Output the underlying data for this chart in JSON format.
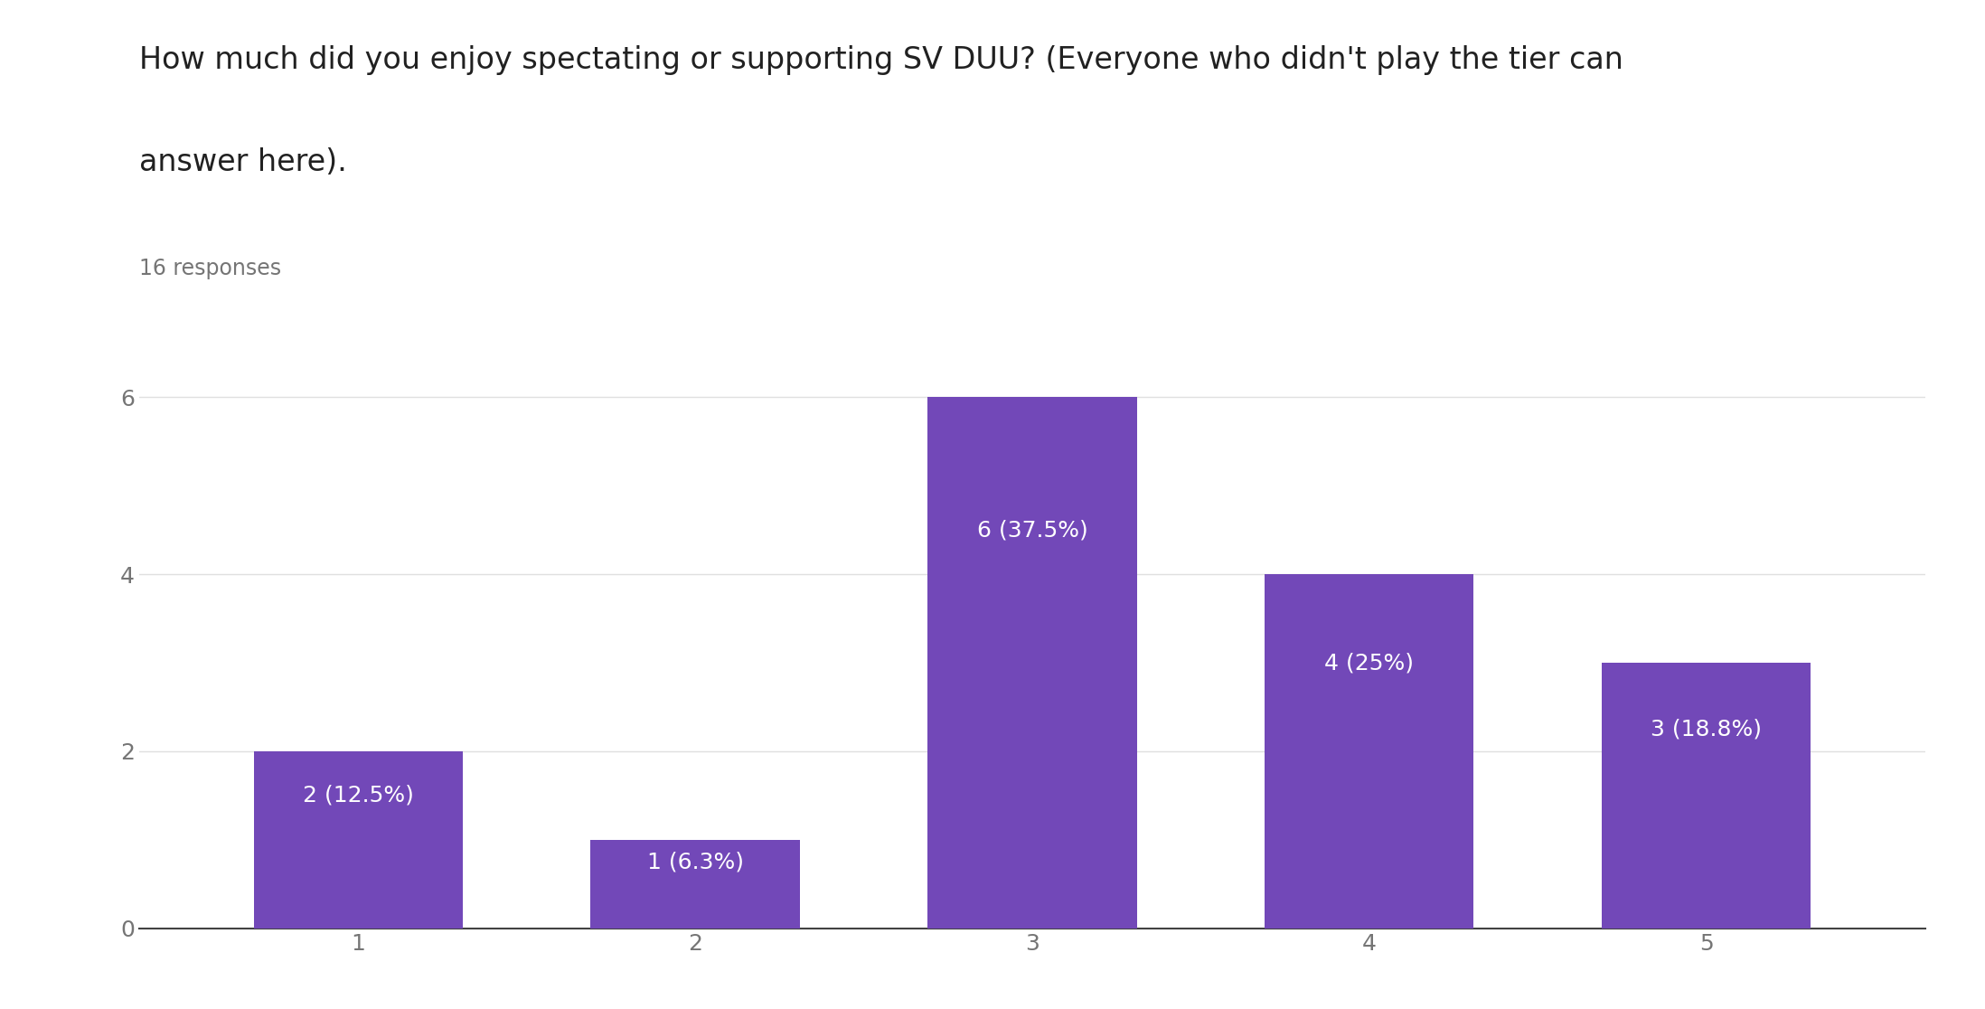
{
  "title_line1": "How much did you enjoy spectating or supporting SV DUU? (Everyone who didn't play the tier can",
  "title_line2": "answer here).",
  "subtitle": "16 responses",
  "categories": [
    1,
    2,
    3,
    4,
    5
  ],
  "values": [
    2,
    1,
    6,
    4,
    3
  ],
  "labels": [
    "2 (12.5%)",
    "1 (6.3%)",
    "6 (37.5%)",
    "4 (25%)",
    "3 (18.8%)"
  ],
  "bar_color": "#7248b8",
  "background_color": "#ffffff",
  "ylim": [
    0,
    6.6
  ],
  "yticks": [
    0,
    2,
    4,
    6
  ],
  "title_fontsize": 24,
  "subtitle_fontsize": 17,
  "label_fontsize": 18,
  "tick_fontsize": 18,
  "label_color": "#ffffff",
  "title_color": "#212121",
  "subtitle_color": "#757575",
  "tick_color": "#757575",
  "grid_color": "#e0e0e0"
}
